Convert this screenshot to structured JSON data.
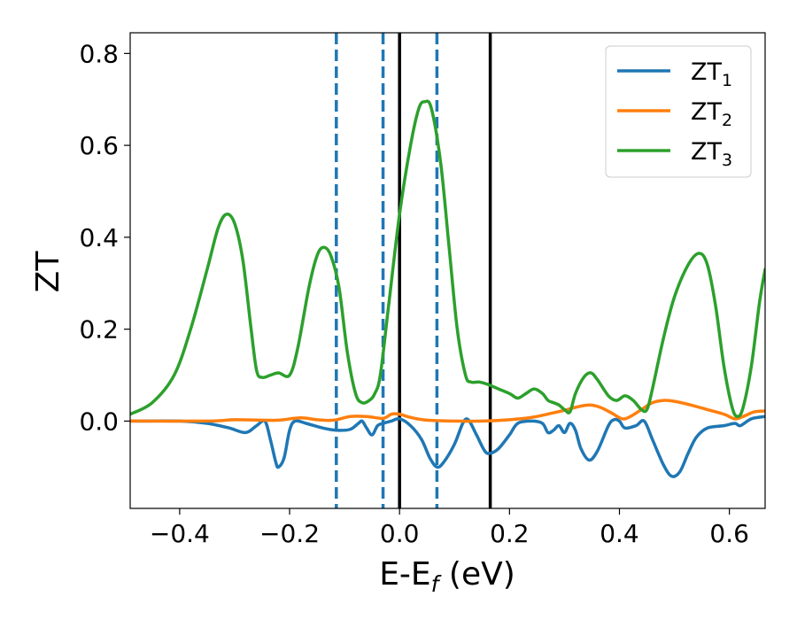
{
  "chart_data": {
    "type": "line",
    "title": "",
    "xlabel": {
      "main": "E-E",
      "sub": "f",
      "unit": " (eV)"
    },
    "ylabel": "ZT",
    "xlim": [
      -0.49,
      0.665
    ],
    "ylim": [
      -0.19,
      0.845
    ],
    "x_ticks": [
      -0.4,
      -0.2,
      0.0,
      0.2,
      0.4,
      0.6
    ],
    "x_tick_labels": [
      "−0.4",
      "−0.2",
      "0.0",
      "0.2",
      "0.4",
      "0.6"
    ],
    "y_ticks": [
      0.0,
      0.2,
      0.4,
      0.6,
      0.8
    ],
    "y_tick_labels": [
      "0.0",
      "0.2",
      "0.4",
      "0.6",
      "0.8"
    ],
    "grid": false,
    "legend_position": "top-right",
    "vlines_dashed": [
      -0.115,
      -0.03,
      0.068
    ],
    "vlines_solid": [
      0.0,
      0.165
    ],
    "series": [
      {
        "name": "ZT",
        "sub": "1",
        "color": "#1f77b4",
        "points": [
          [
            -0.49,
            0.0
          ],
          [
            -0.4,
            0.0
          ],
          [
            -0.35,
            -0.005
          ],
          [
            -0.31,
            -0.015
          ],
          [
            -0.28,
            -0.025
          ],
          [
            -0.26,
            -0.01
          ],
          [
            -0.245,
            0.0
          ],
          [
            -0.235,
            -0.04
          ],
          [
            -0.225,
            -0.09
          ],
          [
            -0.22,
            -0.1
          ],
          [
            -0.21,
            -0.08
          ],
          [
            -0.2,
            -0.02
          ],
          [
            -0.19,
            0.0
          ],
          [
            -0.17,
            -0.005
          ],
          [
            -0.14,
            -0.015
          ],
          [
            -0.115,
            -0.02
          ],
          [
            -0.09,
            -0.018
          ],
          [
            -0.075,
            -0.005
          ],
          [
            -0.068,
            0.0
          ],
          [
            -0.06,
            -0.015
          ],
          [
            -0.05,
            -0.03
          ],
          [
            -0.04,
            -0.01
          ],
          [
            -0.03,
            -0.005
          ],
          [
            -0.015,
            0.0
          ],
          [
            0.0,
            0.005
          ],
          [
            0.02,
            -0.01
          ],
          [
            0.04,
            -0.04
          ],
          [
            0.055,
            -0.08
          ],
          [
            0.068,
            -0.1
          ],
          [
            0.08,
            -0.09
          ],
          [
            0.1,
            -0.05
          ],
          [
            0.115,
            -0.005
          ],
          [
            0.125,
            0.003
          ],
          [
            0.14,
            -0.03
          ],
          [
            0.155,
            -0.065
          ],
          [
            0.165,
            -0.07
          ],
          [
            0.18,
            -0.06
          ],
          [
            0.2,
            -0.03
          ],
          [
            0.215,
            -0.005
          ],
          [
            0.24,
            0.0
          ],
          [
            0.26,
            -0.005
          ],
          [
            0.27,
            -0.025
          ],
          [
            0.28,
            -0.02
          ],
          [
            0.29,
            -0.01
          ],
          [
            0.3,
            -0.025
          ],
          [
            0.31,
            -0.005
          ],
          [
            0.32,
            -0.02
          ],
          [
            0.33,
            -0.06
          ],
          [
            0.345,
            -0.085
          ],
          [
            0.36,
            -0.065
          ],
          [
            0.38,
            -0.01
          ],
          [
            0.39,
            0.003
          ],
          [
            0.4,
            0.0
          ],
          [
            0.41,
            -0.015
          ],
          [
            0.43,
            -0.01
          ],
          [
            0.445,
            0.0
          ],
          [
            0.46,
            -0.04
          ],
          [
            0.48,
            -0.095
          ],
          [
            0.495,
            -0.12
          ],
          [
            0.51,
            -0.11
          ],
          [
            0.525,
            -0.07
          ],
          [
            0.54,
            -0.035
          ],
          [
            0.56,
            -0.015
          ],
          [
            0.59,
            -0.01
          ],
          [
            0.61,
            -0.005
          ],
          [
            0.62,
            -0.01
          ],
          [
            0.64,
            0.005
          ],
          [
            0.665,
            0.01
          ]
        ]
      },
      {
        "name": "ZT",
        "sub": "2",
        "color": "#ff7f0e",
        "points": [
          [
            -0.49,
            0.0
          ],
          [
            -0.35,
            0.0
          ],
          [
            -0.3,
            0.003
          ],
          [
            -0.25,
            0.002
          ],
          [
            -0.22,
            0.002
          ],
          [
            -0.18,
            0.007
          ],
          [
            -0.15,
            0.003
          ],
          [
            -0.12,
            0.002
          ],
          [
            -0.09,
            0.01
          ],
          [
            -0.06,
            0.01
          ],
          [
            -0.03,
            0.006
          ],
          [
            -0.015,
            0.015
          ],
          [
            0.0,
            0.015
          ],
          [
            0.02,
            0.008
          ],
          [
            0.05,
            0.002
          ],
          [
            0.1,
            0.0
          ],
          [
            0.15,
            0.0
          ],
          [
            0.2,
            0.003
          ],
          [
            0.24,
            0.008
          ],
          [
            0.28,
            0.018
          ],
          [
            0.305,
            0.025
          ],
          [
            0.32,
            0.03
          ],
          [
            0.345,
            0.035
          ],
          [
            0.365,
            0.03
          ],
          [
            0.385,
            0.018
          ],
          [
            0.405,
            0.005
          ],
          [
            0.42,
            0.01
          ],
          [
            0.44,
            0.025
          ],
          [
            0.46,
            0.04
          ],
          [
            0.48,
            0.045
          ],
          [
            0.5,
            0.043
          ],
          [
            0.53,
            0.035
          ],
          [
            0.56,
            0.025
          ],
          [
            0.59,
            0.015
          ],
          [
            0.61,
            0.005
          ],
          [
            0.625,
            0.01
          ],
          [
            0.645,
            0.02
          ],
          [
            0.665,
            0.022
          ]
        ]
      },
      {
        "name": "ZT",
        "sub": "3",
        "color": "#2ca02c",
        "points": [
          [
            -0.49,
            0.015
          ],
          [
            -0.45,
            0.04
          ],
          [
            -0.41,
            0.1
          ],
          [
            -0.38,
            0.2
          ],
          [
            -0.35,
            0.33
          ],
          [
            -0.33,
            0.42
          ],
          [
            -0.315,
            0.45
          ],
          [
            -0.3,
            0.43
          ],
          [
            -0.285,
            0.35
          ],
          [
            -0.27,
            0.2
          ],
          [
            -0.26,
            0.11
          ],
          [
            -0.25,
            0.095
          ],
          [
            -0.235,
            0.1
          ],
          [
            -0.22,
            0.105
          ],
          [
            -0.2,
            0.1
          ],
          [
            -0.185,
            0.16
          ],
          [
            -0.165,
            0.29
          ],
          [
            -0.15,
            0.36
          ],
          [
            -0.138,
            0.378
          ],
          [
            -0.125,
            0.36
          ],
          [
            -0.11,
            0.29
          ],
          [
            -0.095,
            0.15
          ],
          [
            -0.08,
            0.06
          ],
          [
            -0.068,
            0.04
          ],
          [
            -0.055,
            0.045
          ],
          [
            -0.045,
            0.06
          ],
          [
            -0.035,
            0.1
          ],
          [
            -0.02,
            0.25
          ],
          [
            0.0,
            0.45
          ],
          [
            0.02,
            0.6
          ],
          [
            0.035,
            0.68
          ],
          [
            0.046,
            0.695
          ],
          [
            0.058,
            0.68
          ],
          [
            0.075,
            0.56
          ],
          [
            0.09,
            0.38
          ],
          [
            0.105,
            0.2
          ],
          [
            0.12,
            0.1
          ],
          [
            0.13,
            0.085
          ],
          [
            0.145,
            0.085
          ],
          [
            0.16,
            0.08
          ],
          [
            0.18,
            0.07
          ],
          [
            0.2,
            0.06
          ],
          [
            0.215,
            0.05
          ],
          [
            0.23,
            0.06
          ],
          [
            0.245,
            0.07
          ],
          [
            0.26,
            0.06
          ],
          [
            0.27,
            0.045
          ],
          [
            0.28,
            0.04
          ],
          [
            0.29,
            0.035
          ],
          [
            0.3,
            0.025
          ],
          [
            0.31,
            0.02
          ],
          [
            0.32,
            0.06
          ],
          [
            0.335,
            0.095
          ],
          [
            0.348,
            0.105
          ],
          [
            0.36,
            0.09
          ],
          [
            0.38,
            0.055
          ],
          [
            0.395,
            0.045
          ],
          [
            0.41,
            0.055
          ],
          [
            0.425,
            0.045
          ],
          [
            0.44,
            0.025
          ],
          [
            0.45,
            0.025
          ],
          [
            0.46,
            0.07
          ],
          [
            0.48,
            0.18
          ],
          [
            0.5,
            0.27
          ],
          [
            0.525,
            0.34
          ],
          [
            0.545,
            0.365
          ],
          [
            0.56,
            0.34
          ],
          [
            0.575,
            0.25
          ],
          [
            0.59,
            0.12
          ],
          [
            0.605,
            0.03
          ],
          [
            0.615,
            0.01
          ],
          [
            0.625,
            0.03
          ],
          [
            0.64,
            0.12
          ],
          [
            0.655,
            0.26
          ],
          [
            0.665,
            0.33
          ]
        ]
      }
    ]
  }
}
